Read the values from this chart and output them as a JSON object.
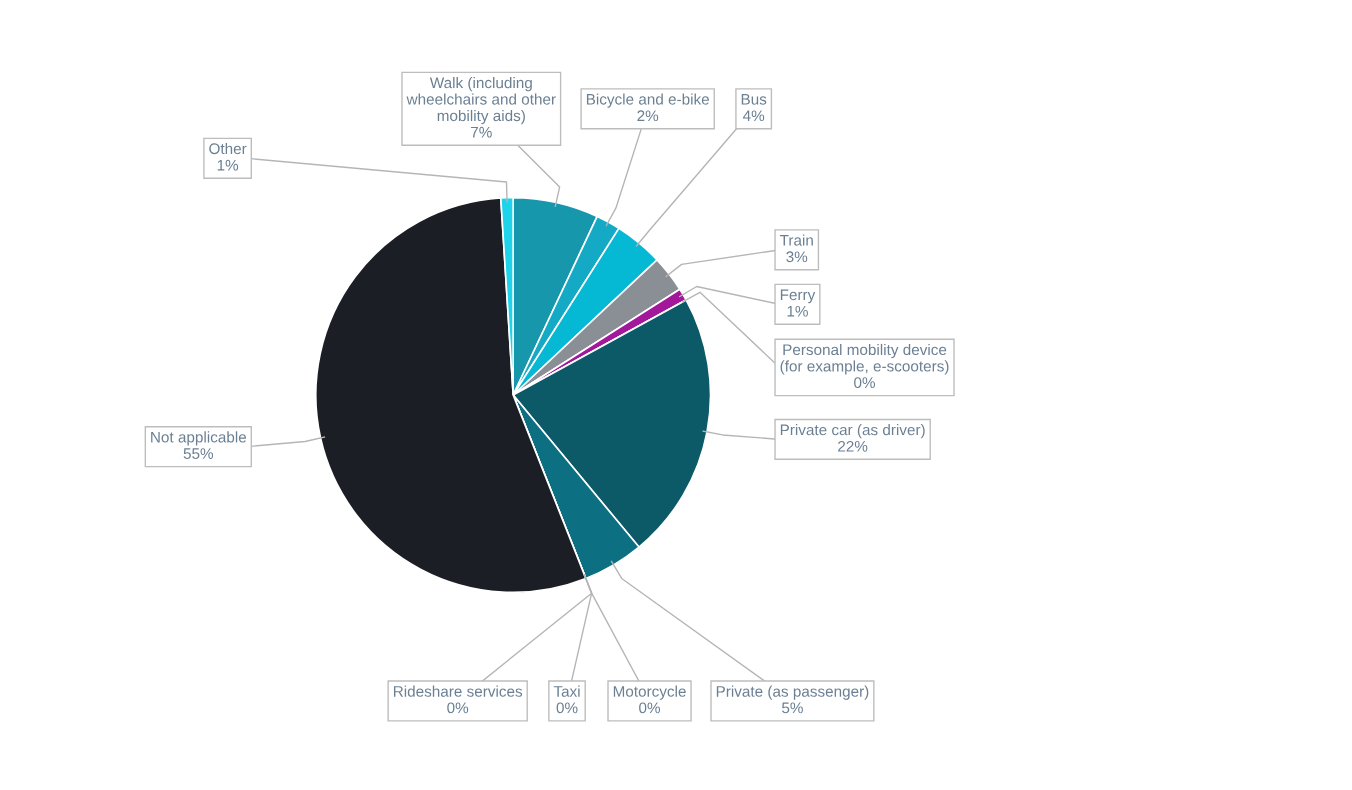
{
  "chart_data": {
    "type": "pie",
    "categories": [
      "Walk (including wheelchairs and other mobility aids)",
      "Bicycle and e-bike",
      "Bus",
      "Train",
      "Ferry",
      "Personal mobility device (for example, e-scooters)",
      "Private car (as driver)",
      "Private (as passenger)",
      "Motorcycle",
      "Taxi",
      "Rideshare services",
      "Not applicable",
      "Other"
    ],
    "values": [
      7,
      2,
      4,
      3,
      1,
      0,
      22,
      5,
      0,
      0,
      0,
      55,
      1
    ],
    "value_labels": [
      "7%",
      "2%",
      "4%",
      "3%",
      "1%",
      "0%",
      "22%",
      "5%",
      "0%",
      "0%",
      "0%",
      "55%",
      "1%"
    ],
    "colors": [
      "#1697ab",
      "#14a9c4",
      "#05b8d4",
      "#8a8f96",
      "#a3189b",
      "#2a7d8c",
      "#0c5968",
      "#0d6f82",
      "#0a4a55",
      "#0e3d46",
      "#7a1760",
      "#1b1e25",
      "#1fd3ea"
    ],
    "legend": false
  }
}
